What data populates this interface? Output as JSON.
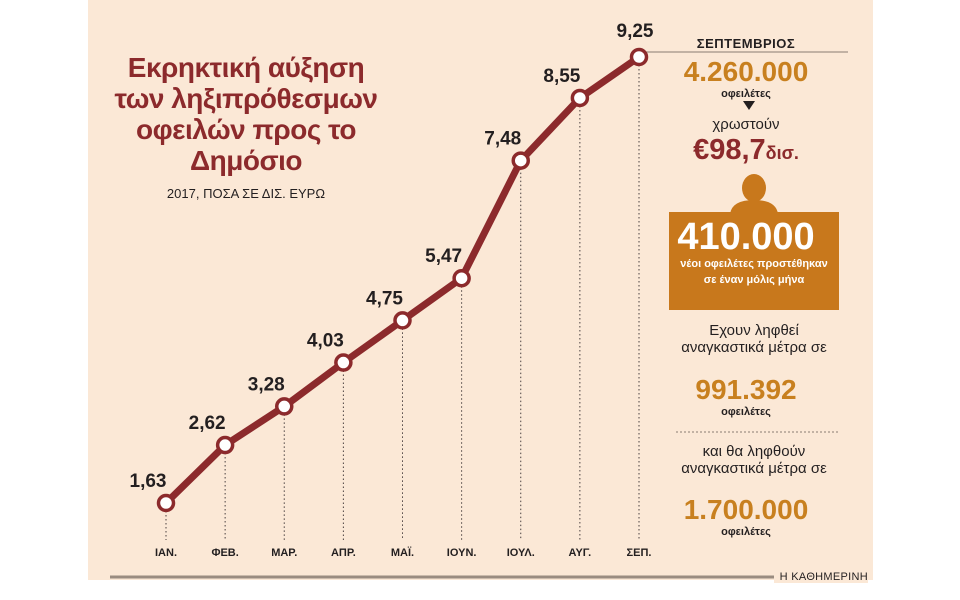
{
  "chart_data": {
    "type": "line",
    "title": "Εκρηκτική αύξηση των ληξιπρόθεσμων οφειλών προς το Δημόσιο",
    "subtitle": "2017, ΠΟΣΑ ΣΕ ΔΙΣ. ΕΥΡΩ",
    "categories": [
      "ΙΑΝ.",
      "ΦΕΒ.",
      "ΜΑΡ.",
      "ΑΠΡ.",
      "ΜΑΪ.",
      "ΙΟΥΝ.",
      "ΙΟΥΛ.",
      "ΑΥΓ.",
      "ΣΕΠ."
    ],
    "values": [
      1.63,
      2.62,
      3.28,
      4.03,
      4.75,
      5.47,
      7.48,
      8.55,
      9.25
    ],
    "data_labels": [
      "1,63",
      "2,62",
      "3,28",
      "4,03",
      "4,75",
      "5,47",
      "7,48",
      "8,55",
      "9,25"
    ],
    "ylim": [
      1.63,
      9.25
    ],
    "grid": "vertical dotted drop lines",
    "colors": {
      "line": "#8c2a2c",
      "marker_fill": "#ffffff",
      "background": "#fbe8d6"
    }
  },
  "sidebar": {
    "month": "ΣΕΠΤΕΜΒΡΙΟΣ",
    "debtors_value": "4.260.000",
    "debtors_label": "οφειλέτες",
    "owe_label": "χρωστούν",
    "owe_value": "€98,7",
    "owe_unit": "δισ.",
    "new_value": "410.000",
    "new_label": "νέοι οφειλέτες προστέθηκαν σε έναν μόλις μήνα",
    "measures_label": "Εχουν ληφθεί αναγκαστικά μέτρα σε",
    "measures_value": "991.392",
    "measures_unit": "οφειλέτες",
    "future_label": "και θα ληφθούν αναγκαστικά μέτρα σε",
    "future_value": "1.700.000",
    "future_unit": "οφειλέτες",
    "icons": [
      "triangle-down-icon",
      "person-icon"
    ],
    "accent_colors": {
      "orange": "#c8801f",
      "box": "#c8781c",
      "maroon": "#8c2a2c"
    }
  },
  "footer": {
    "brand": "Η ΚΑΘΗΜΕΡΙΝΗ"
  }
}
